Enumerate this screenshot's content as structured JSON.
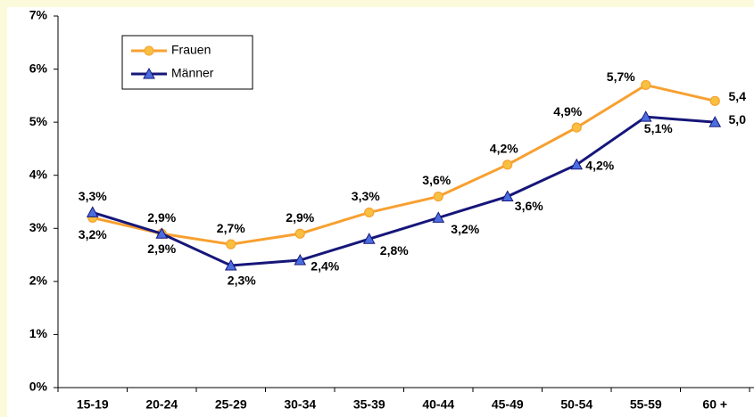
{
  "chart_data": {
    "type": "line",
    "categories": [
      "15-19",
      "20-24",
      "25-29",
      "30-34",
      "35-39",
      "40-44",
      "45-49",
      "50-54",
      "55-59",
      "60 +"
    ],
    "series": [
      {
        "name": "Frauen",
        "color": "#f7a030",
        "marker": "circle",
        "marker_color": "#f8c040",
        "values": [
          3.2,
          2.9,
          2.7,
          2.9,
          3.3,
          3.6,
          4.2,
          4.9,
          5.7,
          5.4
        ],
        "value_labels": [
          "3,2%",
          "2,9%",
          "2,7%",
          "2,9%",
          "3,3%",
          "3,6%",
          "4,2%",
          "4,9%",
          "5,7%",
          "5,4"
        ]
      },
      {
        "name": "Männer",
        "color": "#16167a",
        "marker": "triangle",
        "marker_color": "#4a6ee0",
        "values": [
          3.3,
          2.9,
          2.3,
          2.4,
          2.8,
          3.2,
          3.6,
          4.2,
          5.1,
          5.0
        ],
        "value_labels": [
          "3,3%",
          "2,9%",
          "2,3%",
          "2,4%",
          "2,8%",
          "3,2%",
          "3,6%",
          "4,2%",
          "5,1%",
          "5,0"
        ]
      }
    ],
    "ylim": [
      0,
      7
    ],
    "yticks": [
      {
        "value": 0,
        "label": "0%"
      },
      {
        "value": 1,
        "label": "1%"
      },
      {
        "value": 2,
        "label": "2%"
      },
      {
        "value": 3,
        "label": "3%"
      },
      {
        "value": 4,
        "label": "4%"
      },
      {
        "value": 5,
        "label": "5%"
      },
      {
        "value": 6,
        "label": "6%"
      },
      {
        "value": 7,
        "label": "7%"
      }
    ],
    "legend": "upper left"
  }
}
